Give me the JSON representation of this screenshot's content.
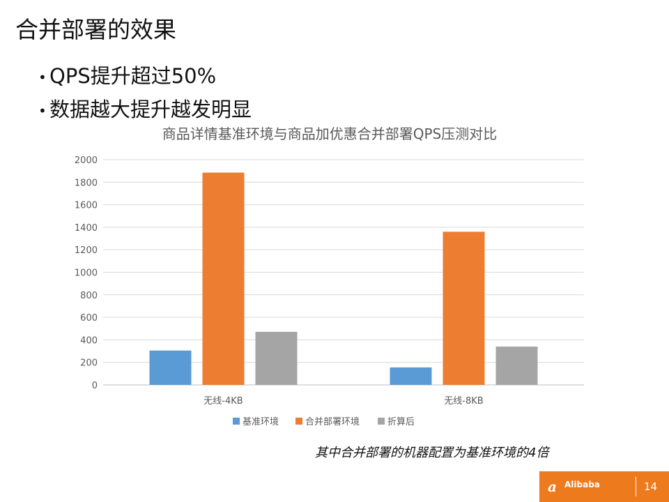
{
  "slide": {
    "title": "合并部署的效果",
    "bullets": [
      "QPS提升超过50%",
      "数据越大提升越发明显"
    ],
    "bullet_marker": "•",
    "note": "其中合并部署的机器配置为基准环境的4倍",
    "page_number": "14",
    "logo_text": "Alibaba"
  },
  "chart_data": {
    "type": "bar",
    "title": "商品详情基准环境与商品加优惠合并部署QPS压测对比",
    "categories": [
      "无线-4KB",
      "无线-8KB"
    ],
    "series": [
      {
        "name": "基准环境",
        "color": "#5b9bd5",
        "values": [
          305,
          155
        ]
      },
      {
        "name": "合并部署环境",
        "color": "#ed7d31",
        "values": [
          1885,
          1360
        ]
      },
      {
        "name": "折算后",
        "color": "#a5a5a5",
        "values": [
          471,
          340
        ]
      }
    ],
    "ylim": [
      0,
      2000
    ],
    "yticks": [
      "0",
      "200",
      "400",
      "600",
      "800",
      "1000",
      "1200",
      "1400",
      "1600",
      "1800",
      "2000"
    ],
    "xlabel": "",
    "ylabel": "",
    "grid": true,
    "legend": "bottom"
  }
}
